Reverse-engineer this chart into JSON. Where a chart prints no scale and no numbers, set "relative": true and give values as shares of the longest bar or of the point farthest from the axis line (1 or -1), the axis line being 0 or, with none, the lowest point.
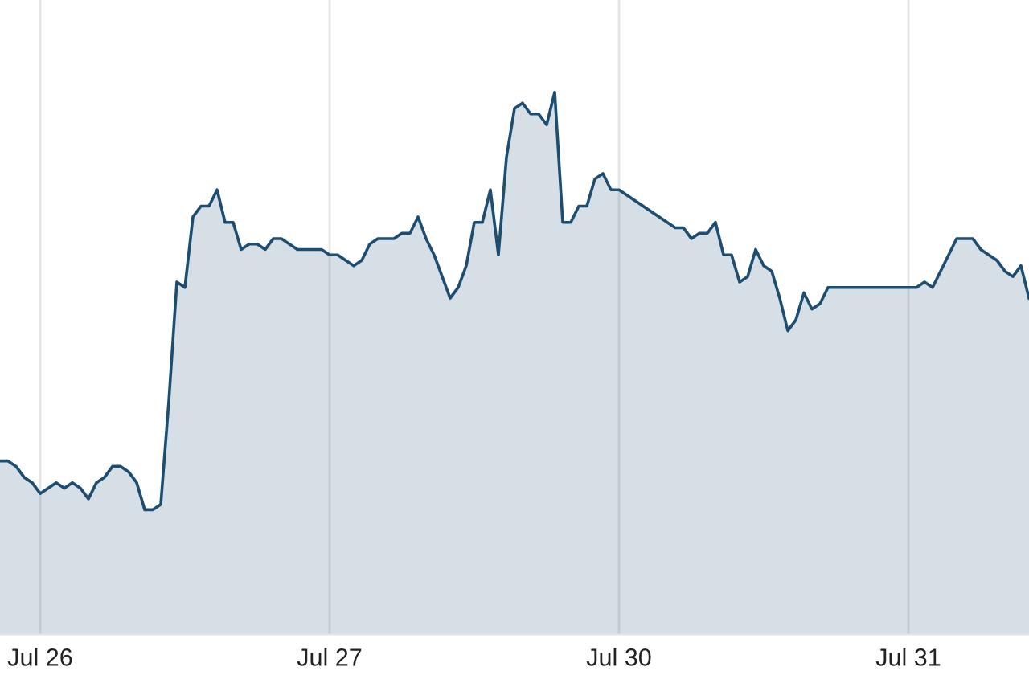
{
  "chart_data": {
    "type": "area",
    "relative": true,
    "grid": "x",
    "categories": [
      null,
      null,
      null,
      null,
      null,
      "Jul 26",
      null,
      null,
      null,
      null,
      null,
      null,
      null,
      null,
      null,
      null,
      null,
      null,
      null,
      null,
      null,
      null,
      null,
      null,
      null,
      null,
      null,
      null,
      null,
      null,
      null,
      null,
      null,
      null,
      null,
      null,
      null,
      null,
      null,
      null,
      null,
      "Jul 27",
      null,
      null,
      null,
      null,
      null,
      null,
      null,
      null,
      null,
      null,
      null,
      null,
      null,
      null,
      null,
      null,
      null,
      null,
      null,
      null,
      null,
      null,
      null,
      null,
      null,
      null,
      null,
      null,
      null,
      null,
      null,
      null,
      null,
      null,
      null,
      "Jul 30",
      null,
      null,
      null,
      null,
      null,
      null,
      null,
      null,
      null,
      null,
      null,
      null,
      null,
      null,
      null,
      null,
      null,
      null,
      null,
      null,
      null,
      null,
      null,
      null,
      null,
      null,
      null,
      null,
      null,
      null,
      null,
      null,
      null,
      null,
      null,
      "Jul 31",
      null,
      null,
      null,
      null,
      null,
      null,
      null,
      null,
      null,
      null,
      null,
      null,
      null,
      null,
      null
    ],
    "series": [
      {
        "color": "#1d4d70",
        "values": [
          0.32,
          0.32,
          0.31,
          0.29,
          0.28,
          0.26,
          0.27,
          0.28,
          0.27,
          0.28,
          0.27,
          0.25,
          0.28,
          0.29,
          0.31,
          0.31,
          0.3,
          0.28,
          0.23,
          0.23,
          0.24,
          0.43,
          0.65,
          0.64,
          0.77,
          0.79,
          0.79,
          0.82,
          0.76,
          0.76,
          0.71,
          0.72,
          0.72,
          0.71,
          0.73,
          0.73,
          0.72,
          0.71,
          0.71,
          0.71,
          0.71,
          0.7,
          0.7,
          0.69,
          0.68,
          0.69,
          0.72,
          0.73,
          0.73,
          0.73,
          0.74,
          0.74,
          0.77,
          0.73,
          0.7,
          0.66,
          0.62,
          0.64,
          0.68,
          0.76,
          0.76,
          0.82,
          0.7,
          0.88,
          0.97,
          0.98,
          0.96,
          0.96,
          0.94,
          1.0,
          0.76,
          0.76,
          0.79,
          0.79,
          0.84,
          0.85,
          0.82,
          0.82,
          0.81,
          0.8,
          0.79,
          0.78,
          0.77,
          0.76,
          0.75,
          0.75,
          0.73,
          0.74,
          0.74,
          0.76,
          0.7,
          0.7,
          0.65,
          0.66,
          0.71,
          0.68,
          0.67,
          0.62,
          0.56,
          0.58,
          0.63,
          0.6,
          0.61,
          0.64,
          0.64,
          0.64,
          0.64,
          0.64,
          0.64,
          0.64,
          0.64,
          0.64,
          0.64,
          0.64,
          0.64,
          0.65,
          0.64,
          0.67,
          0.7,
          0.73,
          0.73,
          0.73,
          0.71,
          0.7,
          0.69,
          0.67,
          0.66,
          0.68,
          0.62
        ]
      }
    ]
  }
}
